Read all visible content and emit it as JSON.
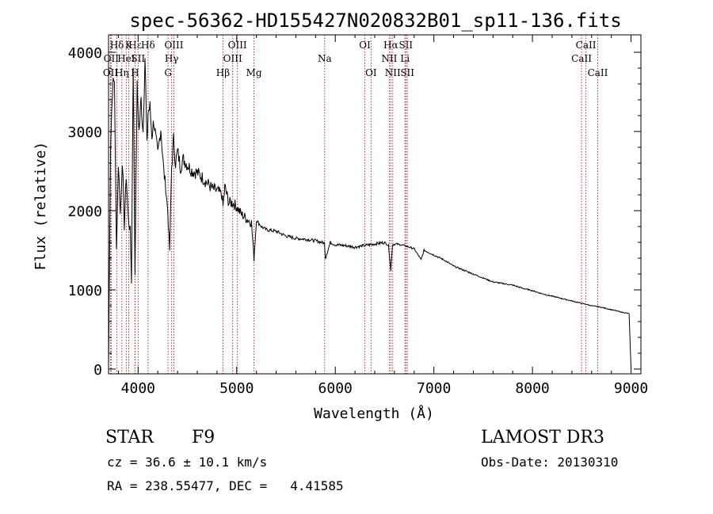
{
  "chart_data": {
    "type": "line",
    "title": "spec-56362-HD155427N020832B01_sp11-136.fits",
    "xlabel": "Wavelength (Å)",
    "ylabel": "Flux (relative)",
    "xlim": [
      3700,
      9100
    ],
    "ylim": [
      -60,
      4220
    ],
    "x_ticks": [
      4000,
      5000,
      6000,
      7000,
      8000,
      9000
    ],
    "y_ticks": [
      0,
      1000,
      2000,
      3000,
      4000
    ],
    "series": [
      {
        "name": "spectrum",
        "x": [
          3700,
          3720,
          3740,
          3760,
          3780,
          3800,
          3820,
          3840,
          3860,
          3880,
          3900,
          3920,
          3933,
          3950,
          3968,
          3990,
          4010,
          4030,
          4050,
          4070,
          4090,
          4101,
          4120,
          4140,
          4160,
          4180,
          4200,
          4230,
          4260,
          4280,
          4300,
          4320,
          4340,
          4360,
          4380,
          4400,
          4430,
          4460,
          4500,
          4550,
          4600,
          4650,
          4700,
          4750,
          4800,
          4850,
          4861,
          4880,
          4920,
          4960,
          5000,
          5050,
          5100,
          5150,
          5175,
          5200,
          5250,
          5300,
          5400,
          5500,
          5600,
          5700,
          5800,
          5890,
          5900,
          5950,
          6000,
          6100,
          6200,
          6300,
          6400,
          6500,
          6540,
          6563,
          6580,
          6620,
          6700,
          6800,
          6870,
          6900,
          7000,
          7100,
          7200,
          7300,
          7400,
          7500,
          7600,
          7700,
          7800,
          7900,
          8000,
          8100,
          8200,
          8300,
          8400,
          8500,
          8600,
          8700,
          8800,
          8900,
          8980,
          9000
        ],
        "y": [
          0,
          2800,
          3550,
          3650,
          1500,
          2600,
          1950,
          2650,
          1800,
          2450,
          1900,
          1750,
          1100,
          3900,
          1200,
          3550,
          3000,
          3400,
          3000,
          3950,
          2800,
          3250,
          3300,
          2950,
          3150,
          2900,
          2700,
          3050,
          2500,
          2300,
          2000,
          1500,
          2550,
          2900,
          2600,
          2750,
          2550,
          2650,
          2580,
          2500,
          2480,
          2420,
          2350,
          2280,
          2250,
          2200,
          2050,
          2300,
          2100,
          2100,
          2050,
          1950,
          1900,
          1850,
          1400,
          1880,
          1800,
          1760,
          1740,
          1680,
          1650,
          1640,
          1620,
          1590,
          1400,
          1600,
          1570,
          1560,
          1540,
          1560,
          1580,
          1600,
          1560,
          1240,
          1570,
          1580,
          1560,
          1520,
          1380,
          1500,
          1440,
          1380,
          1300,
          1250,
          1200,
          1150,
          1100,
          1080,
          1060,
          1020,
          990,
          950,
          920,
          890,
          860,
          830,
          800,
          780,
          750,
          720,
          700,
          0
        ]
      }
    ],
    "lines": [
      {
        "label": "Hδ",
        "x": 3785,
        "row": 1
      },
      {
        "label": "K",
        "x": 3905,
        "row": 1
      },
      {
        "label": "Hε",
        "x": 3970,
        "row": 1
      },
      {
        "label": "Hδ",
        "x": 4101,
        "row": 1
      },
      {
        "label": "OII",
        "x": 3727,
        "row": 2
      },
      {
        "label": "HeI",
        "x": 3880,
        "row": 2
      },
      {
        "label": "SII",
        "x": 4000,
        "row": 2
      },
      {
        "label": "OIII",
        "x": 4363,
        "row": 1
      },
      {
        "label": "Hγ",
        "x": 4340,
        "row": 2
      },
      {
        "label": "G",
        "x": 4304,
        "row": 3
      },
      {
        "label": "OII",
        "x": 3720,
        "row": 3
      },
      {
        "label": "Hη",
        "x": 3835,
        "row": 3
      },
      {
        "label": "H",
        "x": 3968,
        "row": 3
      },
      {
        "label": "OIII",
        "x": 5007,
        "row": 1
      },
      {
        "label": "OIII",
        "x": 4959,
        "row": 2
      },
      {
        "label": "Hβ",
        "x": 4861,
        "row": 3
      },
      {
        "label": "Mg",
        "x": 5175,
        "row": 3
      },
      {
        "label": "Na",
        "x": 5892,
        "row": 2
      },
      {
        "label": "OI",
        "x": 6300,
        "row": 1
      },
      {
        "label": "OI",
        "x": 6363,
        "row": 3
      },
      {
        "label": "Hα",
        "x": 6563,
        "row": 1
      },
      {
        "label": "NII",
        "x": 6548,
        "row": 2
      },
      {
        "label": "NII",
        "x": 6583,
        "row": 3
      },
      {
        "label": "SII",
        "x": 6716,
        "row": 1
      },
      {
        "label": "Li",
        "x": 6707,
        "row": 2
      },
      {
        "label": "SII",
        "x": 6731,
        "row": 3
      },
      {
        "label": "CaII",
        "x": 8542,
        "row": 1
      },
      {
        "label": "CaII",
        "x": 8498,
        "row": 2
      },
      {
        "label": "CaII",
        "x": 8662,
        "row": 3
      }
    ]
  },
  "info": {
    "object_type": "STAR",
    "subclass": "F9",
    "survey": "LAMOST DR3",
    "cz": "cz = 36.6 ± 10.1 km/s",
    "obs_date": "Obs-Date: 20130310",
    "coords": "RA = 238.55477, DEC =   4.41585"
  },
  "colors": {
    "line_marker": "#b0303a",
    "spectrum": "#000000"
  }
}
